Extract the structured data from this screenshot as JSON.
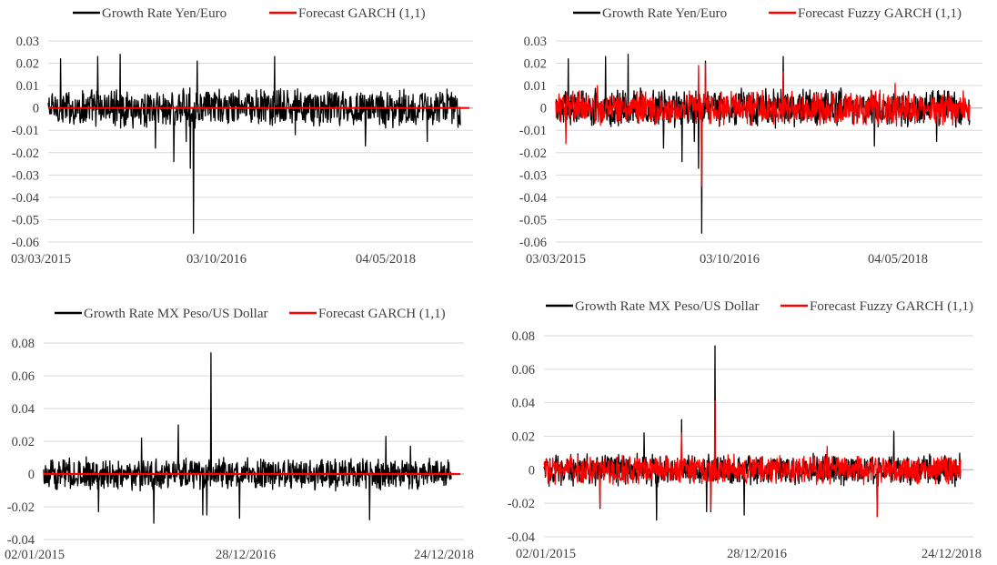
{
  "colors": {
    "actual": "#000000",
    "forecast": "#ff0000",
    "grid": "#d9d9d9",
    "zero_axis": "#bfbfbf"
  },
  "chart_data": [
    {
      "type": "line",
      "title": "",
      "legend_placement": "top",
      "grid": true,
      "ylim": [
        -0.06,
        0.03
      ],
      "y_ticks": [
        "0.03",
        "0.02",
        "0.01",
        "0",
        "-0.01",
        "-0.02",
        "-0.03",
        "-0.04",
        "-0.05",
        "-0.06"
      ],
      "x_tick_labels": [
        "03/03/2015",
        "03/10/2016",
        "04/05/2018"
      ],
      "series": [
        {
          "name": "Growth Rate Yen/Euro",
          "color": "#000000",
          "typical_amplitude": 0.008,
          "spikes": [
            [
              0.03,
              0.022
            ],
            [
              0.12,
              0.023
            ],
            [
              0.175,
              0.024
            ],
            [
              0.26,
              -0.018
            ],
            [
              0.305,
              -0.024
            ],
            [
              0.335,
              -0.015
            ],
            [
              0.345,
              -0.027
            ],
            [
              0.353,
              -0.056
            ],
            [
              0.362,
              0.021
            ],
            [
              0.55,
              0.023
            ],
            [
              0.92,
              -0.015
            ],
            [
              0.77,
              -0.017
            ],
            [
              0.6,
              -0.012
            ]
          ]
        },
        {
          "name": "Forecast GARCH (1,1)",
          "color": "#ff0000",
          "constant_value": 0.0
        }
      ]
    },
    {
      "type": "line",
      "title": "",
      "legend_placement": "top",
      "grid": true,
      "ylim": [
        -0.06,
        0.03
      ],
      "y_ticks": [
        "0.03",
        "0.02",
        "0.01",
        "0",
        "-0.01",
        "-0.02",
        "-0.03",
        "-0.04",
        "-0.05",
        "-0.06"
      ],
      "x_tick_labels": [
        "03/03/2015",
        "03/10/2016",
        "04/05/2018"
      ],
      "series": [
        {
          "name": "Growth Rate Yen/Euro",
          "color": "#000000",
          "typical_amplitude": 0.008,
          "spikes": [
            [
              0.03,
              0.022
            ],
            [
              0.12,
              0.023
            ],
            [
              0.175,
              0.024
            ],
            [
              0.26,
              -0.018
            ],
            [
              0.305,
              -0.024
            ],
            [
              0.335,
              -0.015
            ],
            [
              0.345,
              -0.027
            ],
            [
              0.353,
              -0.056
            ],
            [
              0.362,
              0.021
            ],
            [
              0.55,
              0.023
            ],
            [
              0.92,
              -0.015
            ],
            [
              0.77,
              -0.017
            ]
          ]
        },
        {
          "name": "Forecast Fuzzy GARCH (1,1)",
          "color": "#ff0000",
          "typical_amplitude": 0.007,
          "spikes": [
            [
              0.025,
              -0.016
            ],
            [
              0.1,
              0.01
            ],
            [
              0.345,
              0.019
            ],
            [
              0.353,
              -0.035
            ],
            [
              0.362,
              0.02
            ],
            [
              0.55,
              0.016
            ],
            [
              0.82,
              0.011
            ]
          ]
        }
      ]
    },
    {
      "type": "line",
      "title": "",
      "legend_placement": "top",
      "grid": true,
      "ylim": [
        -0.04,
        0.08
      ],
      "y_ticks": [
        "0.08",
        "0.06",
        "0.04",
        "0.02",
        "0",
        "-0.02",
        "-0.04"
      ],
      "x_tick_labels": [
        "02/01/2015",
        "28/12/2016",
        "24/12/2018"
      ],
      "series": [
        {
          "name": "Growth Rate MX Peso/US Dollar",
          "color": "#000000",
          "typical_amplitude": 0.009,
          "spikes": [
            [
              0.135,
              -0.023
            ],
            [
              0.24,
              0.022
            ],
            [
              0.27,
              -0.03
            ],
            [
              0.33,
              0.03
            ],
            [
              0.39,
              -0.025
            ],
            [
              0.41,
              0.074
            ],
            [
              0.4,
              -0.025
            ],
            [
              0.48,
              -0.027
            ],
            [
              0.84,
              0.023
            ],
            [
              0.8,
              -0.028
            ],
            [
              0.9,
              0.017
            ]
          ]
        },
        {
          "name": "Forecast GARCH (1,1)",
          "color": "#ff0000",
          "constant_value": 0.0
        }
      ]
    },
    {
      "type": "line",
      "title": "",
      "legend_placement": "top",
      "grid": true,
      "ylim": [
        -0.04,
        0.08
      ],
      "y_ticks": [
        "0.08",
        "0.06",
        "0.04",
        "0.02",
        "0",
        "-0.02",
        "-0.04"
      ],
      "x_tick_labels": [
        "02/01/2015",
        "28/12/2016",
        "24/12/2018"
      ],
      "series": [
        {
          "name": "Growth Rate MX Peso/US Dollar",
          "color": "#000000",
          "typical_amplitude": 0.009,
          "spikes": [
            [
              0.135,
              -0.023
            ],
            [
              0.24,
              0.022
            ],
            [
              0.27,
              -0.03
            ],
            [
              0.33,
              0.03
            ],
            [
              0.39,
              -0.025
            ],
            [
              0.41,
              0.074
            ],
            [
              0.4,
              -0.025
            ],
            [
              0.48,
              -0.027
            ],
            [
              0.84,
              0.023
            ],
            [
              0.8,
              -0.028
            ]
          ]
        },
        {
          "name": "Forecast Fuzzy GARCH (1,1)",
          "color": "#ff0000",
          "typical_amplitude": 0.008,
          "spikes": [
            [
              0.135,
              -0.022
            ],
            [
              0.41,
              0.041
            ],
            [
              0.4,
              -0.024
            ],
            [
              0.33,
              0.022
            ],
            [
              0.8,
              -0.028
            ],
            [
              0.68,
              0.014
            ]
          ]
        }
      ]
    }
  ]
}
